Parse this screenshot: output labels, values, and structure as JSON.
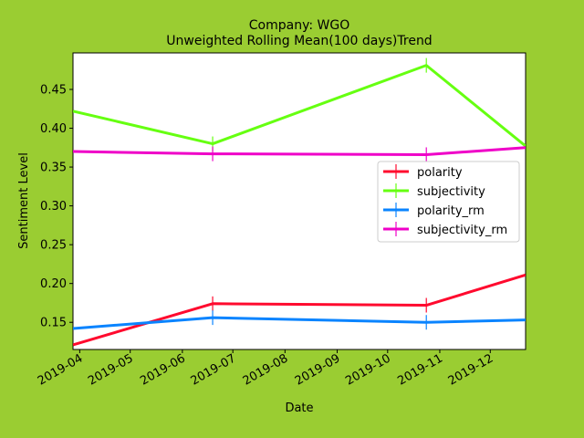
{
  "chart_data": {
    "type": "line",
    "title": "Company: WGO",
    "subtitle": "Unweighted Rolling Mean(100 days)Trend",
    "xlabel": "Date",
    "ylabel": "Sentiment Level",
    "x_ticks": [
      "2019-04",
      "2019-05",
      "2019-06",
      "2019-07",
      "2019-08",
      "2019-09",
      "2019-10",
      "2019-11",
      "2019-12"
    ],
    "x_range": [
      "2019-03-28",
      "2019-12-22"
    ],
    "y_ticks": [
      "0.15",
      "0.20",
      "0.25",
      "0.30",
      "0.35",
      "0.40",
      "0.45"
    ],
    "ylim": [
      0.115,
      0.497
    ],
    "grid": false,
    "legend_position": "center-right",
    "x": [
      "2019-03-28",
      "2019-06-19",
      "2019-10-24",
      "2019-12-22"
    ],
    "series": [
      {
        "name": "polarity",
        "color": "#ff0a2e",
        "values": [
          0.121,
          0.174,
          0.172,
          0.211
        ],
        "markers": [
          false,
          true,
          true,
          false
        ]
      },
      {
        "name": "subjectivity",
        "color": "#66ff11",
        "values": [
          0.422,
          0.38,
          0.481,
          0.377
        ],
        "markers": [
          false,
          true,
          true,
          false
        ]
      },
      {
        "name": "polarity_rm",
        "color": "#0a84ff",
        "values": [
          0.142,
          0.156,
          0.15,
          0.153
        ],
        "markers": [
          false,
          true,
          true,
          false
        ]
      },
      {
        "name": "subjectivity_rm",
        "color": "#ef00c8",
        "values": [
          0.37,
          0.367,
          0.366,
          0.375
        ],
        "markers": [
          false,
          true,
          true,
          false
        ]
      }
    ]
  }
}
